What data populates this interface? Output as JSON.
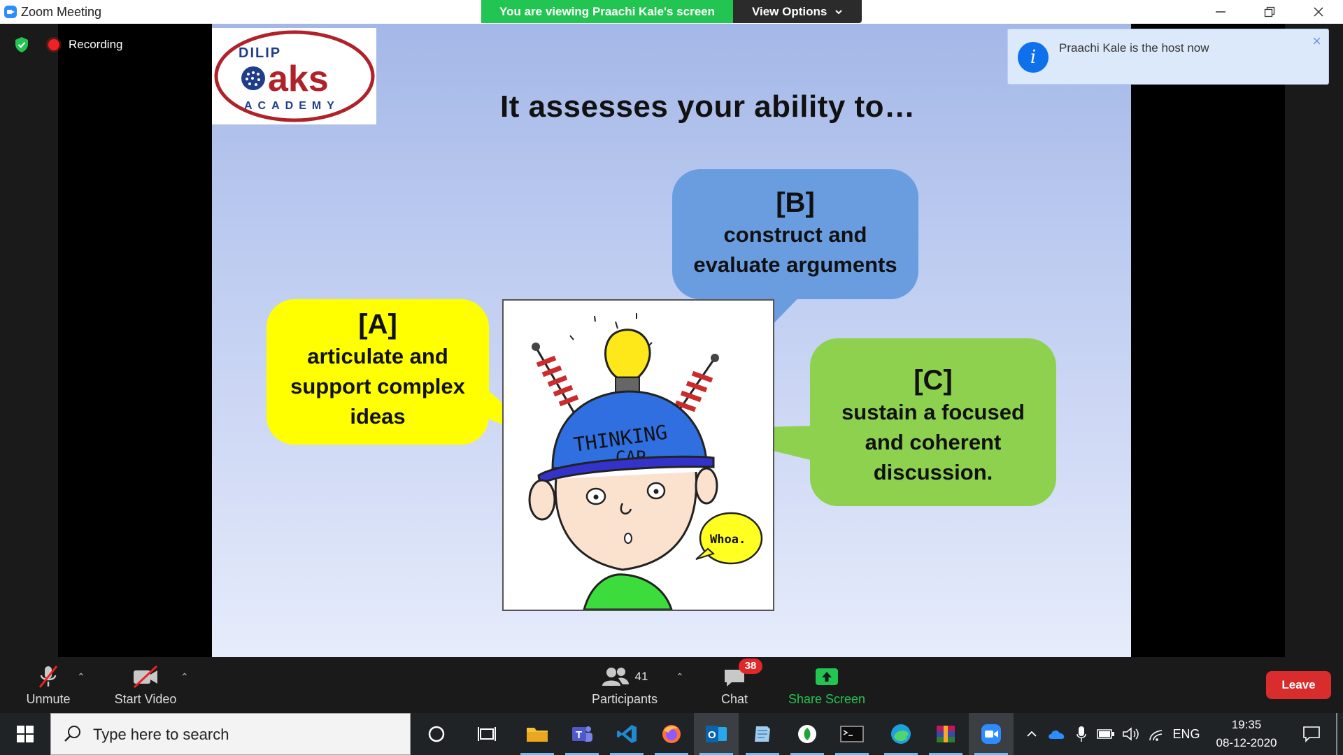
{
  "window": {
    "title": "Zoom Meeting"
  },
  "banner": {
    "viewing": "You are viewing Praachi Kale's screen",
    "view_options": "View Options"
  },
  "meeting": {
    "recording_label": "Recording"
  },
  "slide": {
    "logo": {
      "line1": "DILIP",
      "line2": "aks",
      "line3": "ACADEMY"
    },
    "title": "It assesses your ability to…",
    "bubbles": [
      {
        "label": "[A]",
        "lines": [
          "articulate and",
          "support complex",
          "ideas"
        ],
        "color": "#ffff00"
      },
      {
        "label": "[B]",
        "lines": [
          "construct and",
          "evaluate arguments"
        ],
        "color": "#6a9de0"
      },
      {
        "label": "[C]",
        "lines": [
          "sustain a focused",
          "and coherent",
          "discussion."
        ],
        "color": "#8ed14f"
      }
    ],
    "cartoon": {
      "cap_line1": "THINKING",
      "cap_line2": "CAP",
      "speech": "Whoa."
    }
  },
  "notification": {
    "text": "Praachi Kale is the host now",
    "close": "×"
  },
  "toolbar": {
    "unmute": "Unmute",
    "start_video": "Start Video",
    "participants_count": "41",
    "participants": "Participants",
    "chat": "Chat",
    "chat_badge": "38",
    "share_screen": "Share Screen",
    "leave": "Leave"
  },
  "taskbar": {
    "search_placeholder": "Type here to search",
    "language": "ENG",
    "time": "19:35",
    "date": "08-12-2020"
  },
  "colors": {
    "zoom_blue": "#2d8cff",
    "share_green": "#23c552",
    "leave_red": "#d92d2d",
    "badge_red": "#e02828"
  }
}
